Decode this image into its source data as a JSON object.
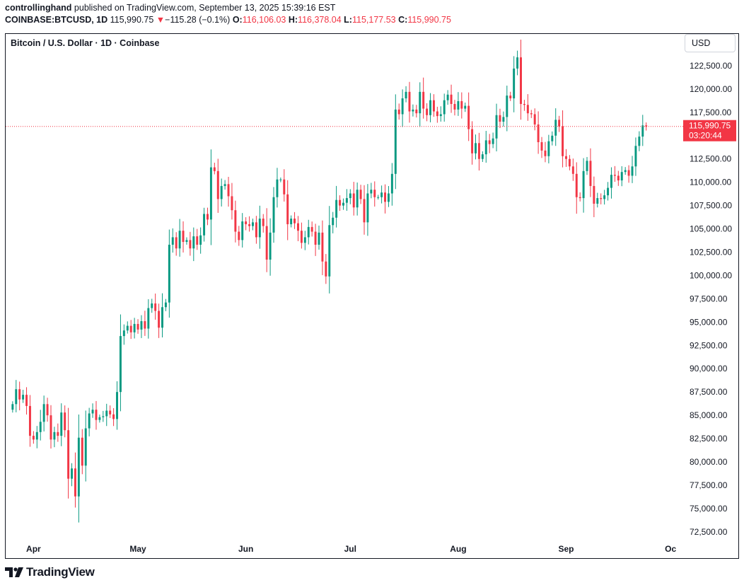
{
  "header": {
    "author": "controllinghand",
    "published_text": "published on TradingView.com, September 13, 2025 15:39:16 EST",
    "symbol": "COINBASE:BTCUSD, 1D",
    "last": "115,990.75",
    "change_arrow": "▼",
    "change": "−115.28 (−0.1%)",
    "o_label": "O:",
    "o_value": "116,106.03",
    "h_label": "H:",
    "h_value": "116,378.04",
    "l_label": "L:",
    "l_value": "115,177.53",
    "c_label": "C:",
    "c_value": "115,990.75"
  },
  "chart_title": "Bitcoin / U.S. Dollar · 1D · Coinbase",
  "currency_button": "USD",
  "price_label": {
    "price": "115,990.75",
    "countdown": "03:20:44"
  },
  "branding": {
    "logo_text": "TradingView"
  },
  "colors": {
    "up": "#089981",
    "down": "#f23645",
    "axis_text": "#131722"
  },
  "chart_data": {
    "type": "candlestick",
    "title": "Bitcoin / U.S. Dollar · 1D · Coinbase",
    "ylim": [
      71500,
      125000
    ],
    "y_ticks": [
      72500,
      75000,
      77500,
      80000,
      82500,
      85000,
      87500,
      90000,
      92500,
      95000,
      97500,
      100000,
      102500,
      105000,
      107500,
      110000,
      112500,
      115000,
      117500,
      120000,
      122500
    ],
    "y_tick_labels": [
      "72,500.00",
      "75,000.00",
      "77,500.00",
      "80,000.00",
      "82,500.00",
      "85,000.00",
      "87,500.00",
      "90,000.00",
      "92,500.00",
      "95,000.00",
      "97,500.00",
      "100,000.00",
      "102,500.00",
      "105,000.00",
      "107,500.00",
      "110,000.00",
      "112,500.00",
      "115,000.00",
      "117,500.00",
      "120,000.00",
      "122,500.00"
    ],
    "x_ticks": [
      {
        "label": "Apr",
        "day": 6
      },
      {
        "label": "May",
        "day": 36
      },
      {
        "label": "Jun",
        "day": 67
      },
      {
        "label": "Jul",
        "day": 97
      },
      {
        "label": "Aug",
        "day": 128
      },
      {
        "label": "Sep",
        "day": 159
      },
      {
        "label": "Oc",
        "day": 189
      }
    ],
    "x_range_days": [
      -2,
      191
    ],
    "last_price": 115990.75,
    "closes": [
      86200,
      87800,
      86700,
      87200,
      86000,
      82800,
      82400,
      83200,
      84300,
      86200,
      85000,
      82400,
      83200,
      82800,
      85300,
      83400,
      78200,
      79300,
      76300,
      82600,
      79600,
      83600,
      85200,
      85600,
      84500,
      84800,
      84900,
      85500,
      85100,
      84600,
      87500,
      93500,
      94100,
      94600,
      93900,
      94800,
      94200,
      95100,
      94300,
      96500,
      97000,
      96200,
      94400,
      96600,
      97100,
      103300,
      104100,
      102900,
      104800,
      103600,
      103800,
      102900,
      104200,
      103300,
      104300,
      106600,
      106000,
      111600,
      111200,
      108200,
      109600,
      109800,
      108500,
      107000,
      104700,
      103800,
      105800,
      105500,
      105300,
      105700,
      104100,
      106100,
      105300,
      101700,
      104600,
      108400,
      110300,
      110300,
      108700,
      105500,
      106100,
      105600,
      104800,
      103500,
      104100,
      105200,
      104700,
      103300,
      104600,
      101500,
      99900,
      105400,
      106200,
      108100,
      107500,
      107800,
      108300,
      108800,
      107300,
      109200,
      108200,
      105700,
      108800,
      109200,
      108400,
      108400,
      108900,
      107900,
      108800,
      110900,
      117800,
      117300,
      119000,
      119700,
      117600,
      117800,
      117400,
      119700,
      117900,
      117200,
      118800,
      117600,
      117100,
      117300,
      118800,
      119400,
      118400,
      117800,
      118700,
      117900,
      118200,
      115700,
      113100,
      114200,
      112500,
      113000,
      114500,
      114100,
      114700,
      117200,
      116500,
      117000,
      119300,
      119000,
      122200,
      123400,
      118400,
      118300,
      117400,
      117300,
      116200,
      114300,
      113400,
      112800,
      114400,
      115000,
      116700,
      116000,
      112800,
      112500,
      111700,
      110900,
      108400,
      108300,
      111200,
      112300,
      109600,
      107700,
      108300,
      108200,
      108600,
      109400,
      110800,
      110700,
      110200,
      111100,
      111300,
      110700,
      111700,
      113900,
      114900,
      116100,
      116000
    ],
    "x_label_unit": "days since 2025-03-10"
  }
}
